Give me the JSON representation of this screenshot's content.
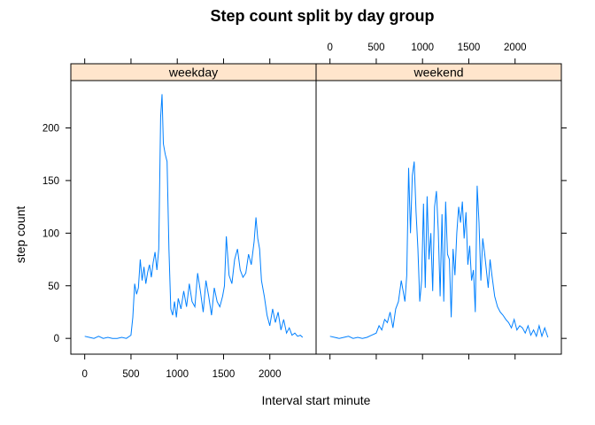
{
  "chart_data": {
    "type": "line",
    "title": "Step count split by day group",
    "xlabel": "Interval start minute",
    "ylabel": "step count",
    "xlim": [
      -150,
      2500
    ],
    "ylim": [
      -15,
      245
    ],
    "x_ticks": [
      0,
      500,
      1000,
      1500,
      2000
    ],
    "y_ticks": [
      0,
      50,
      100,
      150,
      200
    ],
    "strip_color": "#ffe5cc",
    "line_color": "#0080ff",
    "grid": false,
    "panels": [
      {
        "name": "weekday",
        "x": [
          0,
          50,
          100,
          150,
          200,
          250,
          300,
          350,
          400,
          450,
          500,
          520,
          540,
          560,
          580,
          600,
          620,
          640,
          660,
          680,
          700,
          720,
          740,
          760,
          780,
          800,
          820,
          835,
          850,
          870,
          890,
          910,
          930,
          950,
          970,
          990,
          1010,
          1040,
          1070,
          1100,
          1130,
          1160,
          1190,
          1220,
          1250,
          1280,
          1310,
          1340,
          1370,
          1400,
          1430,
          1460,
          1490,
          1510,
          1530,
          1560,
          1590,
          1620,
          1650,
          1680,
          1710,
          1740,
          1770,
          1800,
          1830,
          1850,
          1870,
          1890,
          1910,
          1940,
          1970,
          2000,
          2030,
          2060,
          2090,
          2120,
          2150,
          2180,
          2210,
          2240,
          2270,
          2300,
          2330,
          2355
        ],
        "y": [
          2,
          1,
          0,
          2,
          0,
          1,
          0,
          0,
          1,
          0,
          3,
          20,
          52,
          42,
          48,
          75,
          55,
          68,
          52,
          63,
          70,
          58,
          72,
          82,
          65,
          85,
          210,
          232,
          185,
          175,
          168,
          85,
          28,
          22,
          35,
          20,
          38,
          28,
          45,
          30,
          52,
          35,
          30,
          62,
          45,
          25,
          55,
          40,
          22,
          48,
          35,
          30,
          40,
          50,
          97,
          60,
          52,
          75,
          85,
          65,
          58,
          62,
          80,
          70,
          92,
          115,
          95,
          85,
          55,
          40,
          22,
          12,
          28,
          15,
          25,
          8,
          18,
          5,
          10,
          3,
          5,
          2,
          3,
          1
        ]
      },
      {
        "name": "weekend",
        "x": [
          0,
          50,
          100,
          150,
          200,
          250,
          300,
          350,
          400,
          450,
          500,
          530,
          560,
          590,
          620,
          650,
          680,
          710,
          740,
          770,
          790,
          810,
          830,
          850,
          870,
          890,
          910,
          930,
          950,
          970,
          990,
          1010,
          1030,
          1050,
          1070,
          1090,
          1110,
          1130,
          1150,
          1170,
          1190,
          1210,
          1230,
          1250,
          1270,
          1290,
          1310,
          1330,
          1350,
          1370,
          1390,
          1410,
          1430,
          1450,
          1470,
          1490,
          1510,
          1530,
          1550,
          1570,
          1590,
          1610,
          1630,
          1650,
          1670,
          1690,
          1710,
          1730,
          1750,
          1780,
          1810,
          1840,
          1870,
          1900,
          1930,
          1960,
          1990,
          2020,
          2050,
          2080,
          2110,
          2140,
          2170,
          2200,
          2230,
          2260,
          2290,
          2320,
          2355
        ],
        "y": [
          2,
          1,
          0,
          1,
          2,
          0,
          1,
          0,
          1,
          3,
          5,
          12,
          8,
          18,
          15,
          25,
          10,
          28,
          35,
          55,
          45,
          35,
          60,
          162,
          100,
          155,
          168,
          120,
          85,
          35,
          55,
          128,
          48,
          135,
          75,
          100,
          45,
          125,
          140,
          102,
          40,
          118,
          35,
          130,
          80,
          75,
          20,
          85,
          60,
          100,
          125,
          110,
          130,
          95,
          120,
          70,
          88,
          55,
          65,
          25,
          145,
          110,
          55,
          95,
          82,
          65,
          48,
          75,
          60,
          40,
          30,
          25,
          22,
          18,
          15,
          10,
          18,
          8,
          12,
          10,
          5,
          12,
          3,
          8,
          2,
          12,
          2,
          10,
          1
        ]
      }
    ]
  }
}
